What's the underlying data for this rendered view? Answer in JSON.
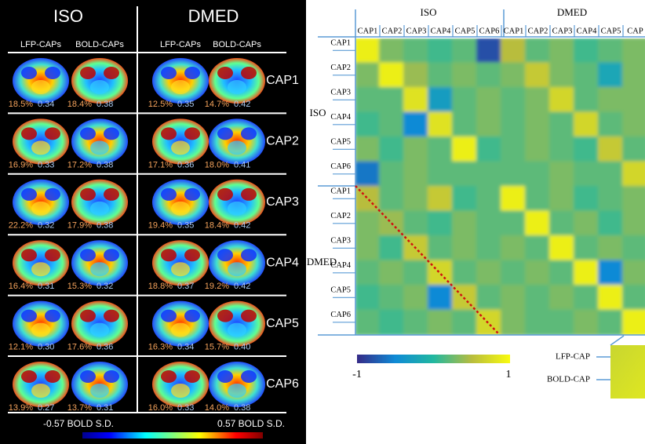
{
  "left_panel": {
    "groups": [
      {
        "title": "ISO",
        "columns": [
          "LFP-CAPs",
          "BOLD-CAPs"
        ]
      },
      {
        "title": "DMED",
        "columns": [
          "LFP-CAPs",
          "BOLD-CAPs"
        ]
      }
    ],
    "rows": [
      {
        "label": "CAP1",
        "stats": [
          [
            "18.5%",
            "0.34"
          ],
          [
            "18.4%",
            "0.38"
          ],
          [
            "12.5%",
            "0.35"
          ],
          [
            "14.7%",
            "0.42"
          ]
        ]
      },
      {
        "label": "CAP2",
        "stats": [
          [
            "16.9%",
            "0.33"
          ],
          [
            "17.2%",
            "0.38"
          ],
          [
            "17.1%",
            "0.36"
          ],
          [
            "18.0%",
            "0.41"
          ]
        ]
      },
      {
        "label": "CAP3",
        "stats": [
          [
            "22.2%",
            "0.32"
          ],
          [
            "17.9%",
            "0.38"
          ],
          [
            "19.4%",
            "0.35"
          ],
          [
            "18.4%",
            "0.42"
          ]
        ]
      },
      {
        "label": "CAP4",
        "stats": [
          [
            "16.4%",
            "0.31"
          ],
          [
            "15.3%",
            "0.32"
          ],
          [
            "18.8%",
            "0.37"
          ],
          [
            "19.2%",
            "0.42"
          ]
        ]
      },
      {
        "label": "CAP5",
        "stats": [
          [
            "12.1%",
            "0.30"
          ],
          [
            "17.6%",
            "0.36"
          ],
          [
            "16.3%",
            "0.34"
          ],
          [
            "15.7%",
            "0.40"
          ]
        ]
      },
      {
        "label": "CAP6",
        "stats": [
          [
            "13.9%",
            "0.27"
          ],
          [
            "13.7%",
            "0.31"
          ],
          [
            "16.0%",
            "0.33"
          ],
          [
            "14.0%",
            "0.38"
          ]
        ]
      }
    ],
    "colorbar": {
      "min_label": "-0.57 BOLD S.D.",
      "max_label": "0.57 BOLD S.D."
    }
  },
  "matrix": {
    "column_groups": [
      {
        "label": "ISO",
        "items": [
          "CAP1",
          "CAP2",
          "CAP3",
          "CAP4",
          "CAP5",
          "CAP6"
        ]
      },
      {
        "label": "DMED",
        "items": [
          "CAP1",
          "CAP2",
          "CAP3",
          "CAP4",
          "CAP5",
          "CAP"
        ]
      }
    ],
    "row_groups": [
      {
        "label": "ISO",
        "items": [
          "CAP1",
          "CAP2",
          "CAP3",
          "CAP4",
          "CAP5",
          "CAP6"
        ]
      },
      {
        "label": "DMED",
        "items": [
          "CAP1",
          "CAP2",
          "CAP3",
          "CAP4",
          "CAP5",
          "CAP6"
        ]
      }
    ],
    "values": [
      [
        0.9,
        0.3,
        0.2,
        0.1,
        0.2,
        -0.8,
        0.5,
        0.2,
        0.3,
        0.1,
        0.2,
        0.3
      ],
      [
        0.3,
        0.9,
        0.4,
        0.2,
        0.3,
        0.2,
        0.3,
        0.6,
        0.3,
        0.2,
        -0.2,
        0.3
      ],
      [
        0.2,
        0.2,
        0.8,
        -0.3,
        0.2,
        0.3,
        0.2,
        0.3,
        0.7,
        0.2,
        0.3,
        0.3
      ],
      [
        0.1,
        0.2,
        -0.5,
        0.8,
        0.2,
        0.3,
        0.2,
        0.3,
        0.2,
        0.7,
        0.2,
        0.3
      ],
      [
        0.3,
        0.1,
        0.3,
        0.2,
        0.9,
        0.1,
        0.2,
        0.3,
        0.2,
        0.1,
        0.6,
        0.2
      ],
      [
        -0.6,
        0.2,
        0.3,
        0.2,
        0.2,
        0.2,
        0.2,
        0.2,
        0.3,
        0.2,
        0.2,
        0.7
      ],
      [
        0.5,
        0.2,
        0.3,
        0.6,
        0.1,
        0.2,
        0.9,
        0.2,
        0.3,
        0.1,
        0.2,
        0.3
      ],
      [
        0.3,
        0.4,
        0.2,
        0.1,
        0.3,
        0.2,
        0.2,
        0.9,
        0.2,
        0.3,
        0.1,
        0.3
      ],
      [
        0.3,
        0.1,
        0.6,
        0.2,
        0.3,
        0.2,
        0.3,
        0.2,
        0.9,
        0.2,
        0.3,
        0.2
      ],
      [
        0.2,
        0.3,
        0.2,
        0.7,
        0.2,
        0.3,
        0.2,
        0.3,
        0.2,
        0.9,
        -0.5,
        0.3
      ],
      [
        0.1,
        0.2,
        0.3,
        -0.5,
        0.6,
        0.2,
        0.3,
        0.2,
        0.3,
        0.2,
        0.9,
        0.2
      ],
      [
        0.2,
        0.1,
        0.2,
        0.3,
        0.2,
        0.7,
        0.3,
        0.2,
        0.2,
        0.3,
        0.2,
        0.9
      ]
    ],
    "colorbar": {
      "min": -1,
      "max": 1
    },
    "legend": [
      "LFP-CAP",
      "BOLD-CAP"
    ]
  }
}
